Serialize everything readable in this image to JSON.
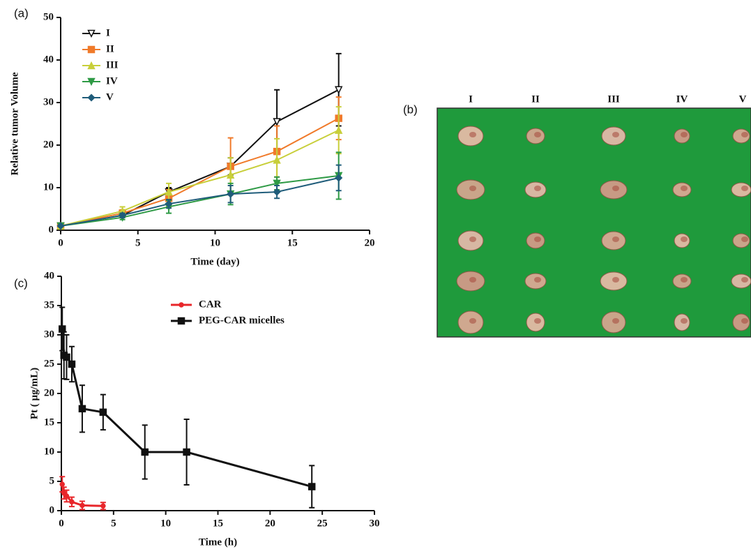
{
  "chart_data": [
    {
      "type": "line",
      "panel_label": "(a)",
      "x_label": "Time (day)",
      "y_label": "Relative tumor Volume",
      "x": [
        0,
        4,
        7,
        11,
        14,
        18
      ],
      "xlim": [
        0,
        20
      ],
      "xticks": [
        0,
        5,
        10,
        15,
        20
      ],
      "ylim": [
        0,
        50
      ],
      "yticks": [
        0,
        10,
        20,
        30,
        40,
        50
      ],
      "legend": "upper left",
      "series": [
        {
          "name": "I",
          "color": "#111111",
          "marker": "triangle-down-open",
          "values": [
            1,
            3.5,
            9,
            15,
            25.5,
            33
          ],
          "errors": [
            0,
            0.5,
            1,
            2,
            7.5,
            8.5
          ]
        },
        {
          "name": "II",
          "color": "#f07a2a",
          "marker": "square",
          "values": [
            1,
            4,
            7.5,
            15,
            18.5,
            26.3
          ],
          "errors": [
            0,
            0.8,
            2,
            6.7,
            6,
            5
          ]
        },
        {
          "name": "III",
          "color": "#c8cf3a",
          "marker": "triangle-up",
          "values": [
            1,
            4.5,
            9,
            13,
            16.5,
            23.5
          ],
          "errors": [
            0,
            1,
            2,
            4,
            5,
            5.5
          ]
        },
        {
          "name": "IV",
          "color": "#2e9a45",
          "marker": "triangle-down",
          "values": [
            1,
            3,
            5.5,
            8.5,
            11,
            12.8
          ],
          "errors": [
            0,
            0.5,
            1.5,
            2.5,
            1.5,
            5.5
          ]
        },
        {
          "name": "V",
          "color": "#1f5c7a",
          "marker": "diamond",
          "values": [
            1,
            3.5,
            6.2,
            8.5,
            9,
            12.3
          ],
          "errors": [
            0,
            0.5,
            1,
            2,
            1.5,
            3
          ]
        }
      ]
    },
    {
      "type": "line",
      "panel_label": "(c)",
      "x_label": "Time (h)",
      "y_label": "Pt ( μg/mL)",
      "xlim": [
        0,
        30
      ],
      "xticks": [
        0,
        5,
        10,
        15,
        20,
        25,
        30
      ],
      "ylim": [
        0,
        40
      ],
      "yticks": [
        0,
        5,
        10,
        15,
        20,
        25,
        30,
        35,
        40
      ],
      "legend": "upper center",
      "series": [
        {
          "name": "CAR",
          "color": "#e8262a",
          "marker": "circle",
          "x": [
            0.083,
            0.25,
            0.5,
            1,
            2,
            4
          ],
          "values": [
            4.5,
            3,
            2.5,
            1.5,
            0.9,
            0.8
          ],
          "errors": [
            1.3,
            1,
            1,
            0.8,
            0.7,
            0.6
          ]
        },
        {
          "name": "PEG-CAR micelles",
          "color": "#111111",
          "marker": "square",
          "x": [
            0.083,
            0.25,
            0.5,
            1,
            2,
            4,
            8,
            12,
            24
          ],
          "values": [
            31,
            26.5,
            26.2,
            25,
            17.4,
            16.8,
            10,
            10,
            4.1
          ],
          "errors": [
            3.7,
            4,
            3.8,
            3,
            4,
            3,
            4.6,
            5.6,
            3.6
          ]
        }
      ]
    }
  ],
  "photo": {
    "panel_label": "(b)",
    "column_labels": [
      "I",
      "II",
      "III",
      "IV",
      "V"
    ]
  }
}
